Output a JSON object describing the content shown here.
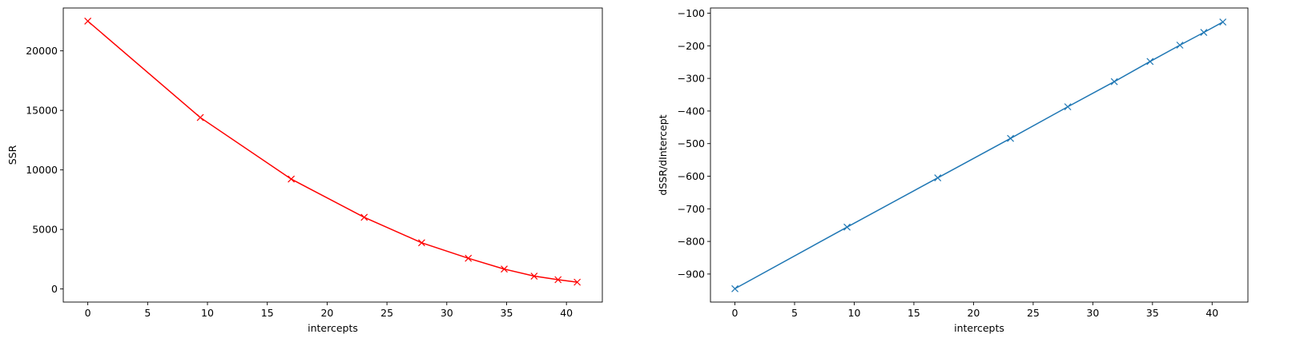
{
  "chart_data": [
    {
      "type": "line",
      "title": "",
      "xlabel": "intercepts",
      "ylabel": "SSR",
      "xlim": [
        -2.05,
        43.0
      ],
      "ylim": [
        -1100,
        23600
      ],
      "xticks": [
        0,
        5,
        10,
        15,
        20,
        25,
        30,
        35,
        40
      ],
      "yticks": [
        0,
        5000,
        10000,
        15000,
        20000
      ],
      "marker": "x",
      "color": "#ff0000",
      "grid": false,
      "x": [
        0,
        9.4,
        17.0,
        23.1,
        27.9,
        31.8,
        34.8,
        37.3,
        39.3,
        40.9
      ],
      "y": [
        22500,
        14400,
        9230,
        6020,
        3880,
        2580,
        1670,
        1080,
        780,
        570
      ]
    },
    {
      "type": "line",
      "title": "",
      "xlabel": "intercepts",
      "ylabel": "dSSR/dIntercept",
      "xlim": [
        -2.05,
        43.0
      ],
      "ylim": [
        -986,
        -84
      ],
      "xticks": [
        0,
        5,
        10,
        15,
        20,
        25,
        30,
        35,
        40
      ],
      "yticks": [
        -900,
        -800,
        -700,
        -600,
        -500,
        -400,
        -300,
        -200,
        -100
      ],
      "ytick_labels": [
        "−900",
        "−800",
        "−700",
        "−600",
        "−500",
        "−400",
        "−300",
        "−200",
        "−100"
      ],
      "marker": "x",
      "color": "#1f77b4",
      "grid": false,
      "x": [
        0,
        9.4,
        17.0,
        23.1,
        27.9,
        31.8,
        34.8,
        37.3,
        39.3,
        40.9
      ],
      "y": [
        -945,
        -756,
        -605,
        -484,
        -387,
        -310,
        -248,
        -198,
        -159,
        -127
      ]
    }
  ]
}
